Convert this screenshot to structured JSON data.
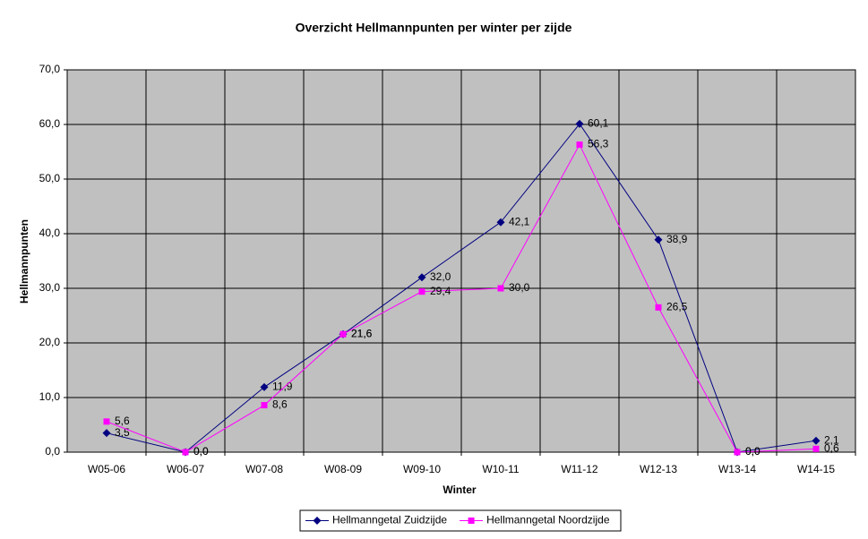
{
  "chart_data": {
    "type": "line",
    "title": "Overzicht Hellmannpunten per winter per zijde",
    "x_label": "Winter",
    "y_label": "Hellmannpunten",
    "categories": [
      "W05-06",
      "W06-07",
      "W07-08",
      "W08-09",
      "W09-10",
      "W10-11",
      "W11-12",
      "W12-13",
      "W13-14",
      "W14-15"
    ],
    "series": [
      {
        "name": "Hellmanngetal Zuidzijde",
        "color": "#000080",
        "marker": "diamond",
        "values": [
          3.5,
          0.0,
          11.9,
          21.6,
          32.0,
          42.1,
          60.1,
          38.9,
          0.0,
          2.1
        ],
        "value_labels": [
          "3,5",
          "0,0",
          "11,9",
          "21,6",
          "32,0",
          "42,1",
          "60,1",
          "38,9",
          "0,0",
          "2,1"
        ]
      },
      {
        "name": "Hellmanngetal Noordzijde",
        "color": "#ff00ff",
        "marker": "square",
        "values": [
          5.6,
          0.0,
          8.6,
          21.6,
          29.4,
          30.0,
          56.3,
          26.5,
          0.0,
          0.6
        ],
        "value_labels": [
          "5,6",
          "0,0",
          "8,6",
          "21,6",
          "29,4",
          "30,0",
          "56,3",
          "26,5",
          "0,0",
          "0,6"
        ]
      }
    ],
    "ylim": [
      0,
      70
    ],
    "yticks": [
      {
        "value": 0,
        "label": "0,0"
      },
      {
        "value": 10,
        "label": "10,0"
      },
      {
        "value": 20,
        "label": "20,0"
      },
      {
        "value": 30,
        "label": "30,0"
      },
      {
        "value": 40,
        "label": "40,0"
      },
      {
        "value": 50,
        "label": "50,0"
      },
      {
        "value": 60,
        "label": "60,0"
      },
      {
        "value": 70,
        "label": "70,0"
      }
    ],
    "grid": true,
    "legend": "bottom",
    "plot_background": "#c0c0c0"
  }
}
